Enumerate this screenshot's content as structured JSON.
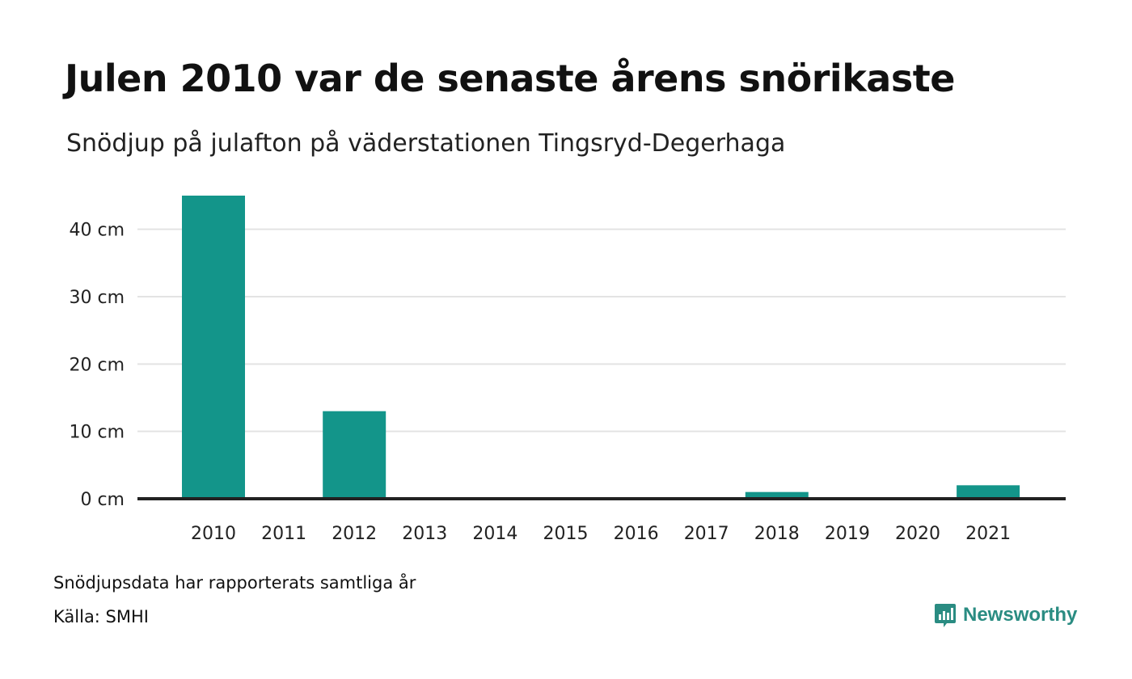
{
  "title": "Julen 2010 var de senaste årens snörikaste",
  "subtitle": "Snödjup på julafton på väderstationen Tingsryd-Degerhaga",
  "note": "Snödjupsdata har rapporterats samtliga år",
  "source": "Källa: SMHI",
  "brand": {
    "name": "Newsworthy",
    "icon": "newsworthy-logo-icon",
    "color": "#2a8c82"
  },
  "colors": {
    "bar": "#13958a",
    "grid": "#e3e3e3",
    "baseline": "#222222"
  },
  "chart_data": {
    "type": "bar",
    "categories": [
      "2010",
      "2011",
      "2012",
      "2013",
      "2014",
      "2015",
      "2016",
      "2017",
      "2018",
      "2019",
      "2020",
      "2021"
    ],
    "values": [
      45,
      0,
      13,
      0,
      0,
      0,
      0,
      0,
      1,
      0,
      0,
      2
    ],
    "yticks": [
      0,
      10,
      20,
      30,
      40
    ],
    "ytick_labels": [
      "0 cm",
      "10 cm",
      "20 cm",
      "30 cm",
      "40 cm"
    ],
    "ylim": [
      0,
      45
    ],
    "xlabel": "",
    "ylabel": "",
    "grid": true,
    "legend": "none"
  }
}
